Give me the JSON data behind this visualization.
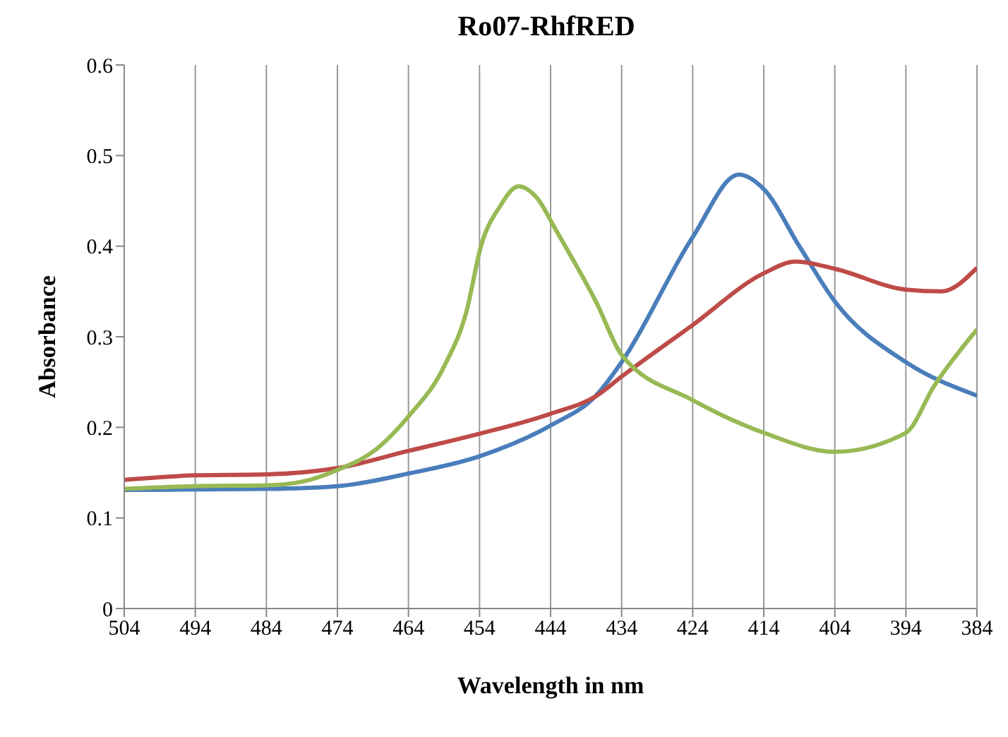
{
  "chart_data": {
    "type": "line",
    "title": "Ro07-RhfRED",
    "xlabel": "Wavelength  in nm",
    "ylabel": "Absorbance",
    "xlim": [
      504,
      384
    ],
    "xticks": [
      504,
      494,
      484,
      474,
      464,
      454,
      444,
      434,
      424,
      414,
      404,
      394,
      384
    ],
    "ylim": [
      0,
      0.6
    ],
    "yticks": [
      0,
      0.1,
      0.2,
      0.3,
      0.4,
      0.5,
      0.6
    ],
    "grid": "x",
    "marker": "none",
    "line_style": "solid",
    "series": [
      {
        "color": "#4a7ebb",
        "x": [
          504,
          484,
          474,
          464,
          454,
          444,
          437.5,
          434,
          424,
          417.5,
          414,
          409,
          404,
          394,
          384
        ],
        "values": [
          0.131,
          0.132,
          0.135,
          0.149,
          0.168,
          0.202,
          0.236,
          0.272,
          0.41,
          0.479,
          0.463,
          0.4,
          0.339,
          0.272,
          0.235
        ]
      },
      {
        "color": "#be4b48",
        "x": [
          504,
          494,
          484,
          474,
          464,
          454,
          444,
          437.5,
          434,
          424,
          414,
          409.5,
          404,
          394,
          389,
          384
        ],
        "values": [
          0.142,
          0.147,
          0.148,
          0.155,
          0.174,
          0.193,
          0.215,
          0.235,
          0.256,
          0.313,
          0.37,
          0.383,
          0.375,
          0.352,
          0.35,
          0.376
        ]
      },
      {
        "color": "#98b954",
        "x": [
          504,
          494,
          484,
          479,
          474,
          468.5,
          464,
          459,
          455.8,
          453.8,
          451.2,
          448.5,
          445.9,
          443.2,
          437.5,
          434,
          424,
          414,
          404,
          394,
          390,
          384
        ],
        "values": [
          0.132,
          0.135,
          0.136,
          0.14,
          0.153,
          0.176,
          0.212,
          0.267,
          0.329,
          0.4,
          0.443,
          0.466,
          0.453,
          0.417,
          0.337,
          0.28,
          0.23,
          0.194,
          0.173,
          0.194,
          0.246,
          0.308
        ]
      }
    ]
  }
}
